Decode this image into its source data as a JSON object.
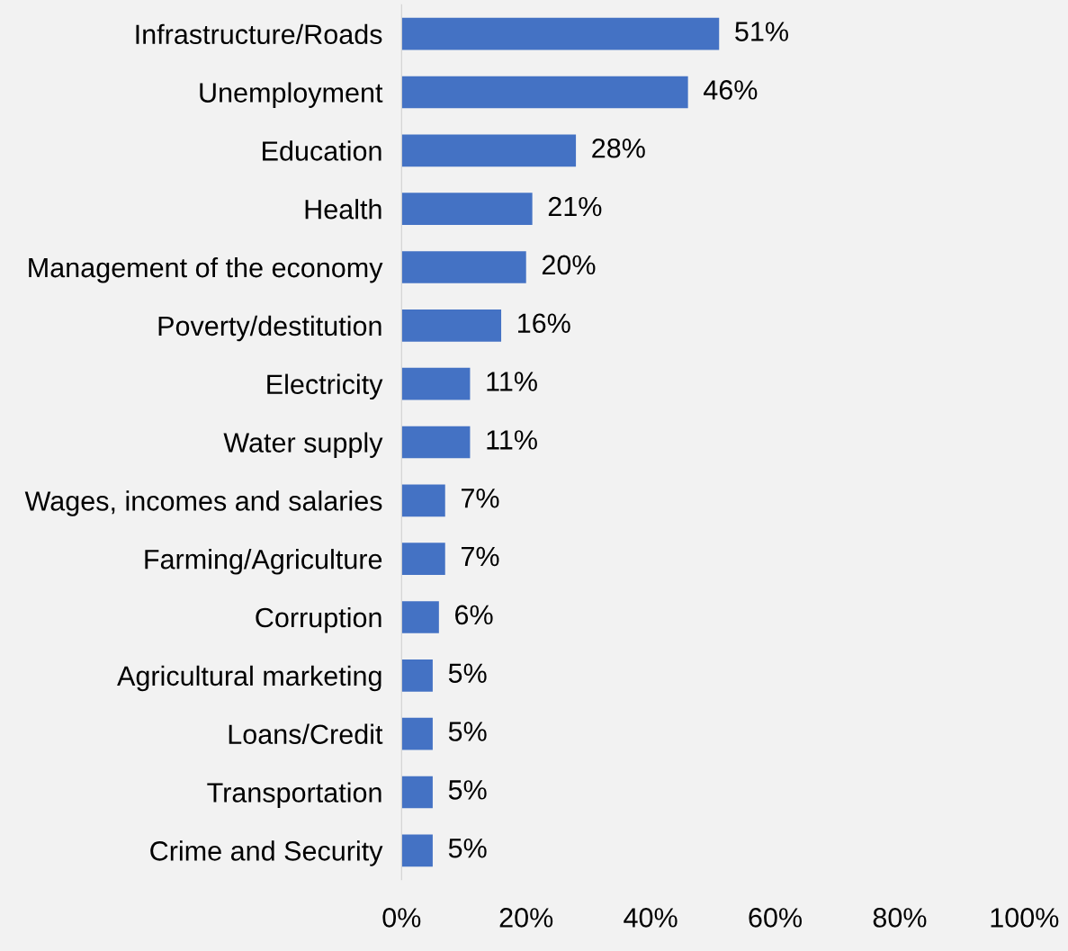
{
  "chart_data": {
    "type": "bar",
    "orientation": "horizontal",
    "categories": [
      "Infrastructure/Roads",
      "Unemployment",
      "Education",
      "Health",
      "Management of the economy",
      "Poverty/destitution",
      "Electricity",
      "Water supply",
      "Wages, incomes and salaries",
      "Farming/Agriculture",
      "Corruption",
      "Agricultural marketing",
      "Loans/Credit",
      "Transportation",
      "Crime and Security"
    ],
    "values": [
      51,
      46,
      28,
      21,
      20,
      16,
      11,
      11,
      7,
      7,
      6,
      5,
      5,
      5,
      5
    ],
    "value_labels": [
      "51%",
      "46%",
      "28%",
      "21%",
      "20%",
      "16%",
      "11%",
      "11%",
      "7%",
      "7%",
      "6%",
      "5%",
      "5%",
      "5%",
      "5%"
    ],
    "color": "#4472c4",
    "xlim": [
      0,
      100
    ],
    "xticks": [
      {
        "value": 0,
        "label": "0%"
      },
      {
        "value": 20,
        "label": "20%"
      },
      {
        "value": 40,
        "label": "40%"
      },
      {
        "value": 60,
        "label": "60%"
      },
      {
        "value": 80,
        "label": "80%"
      },
      {
        "value": 100,
        "label": "100%"
      }
    ],
    "grid": false,
    "legend": false
  }
}
